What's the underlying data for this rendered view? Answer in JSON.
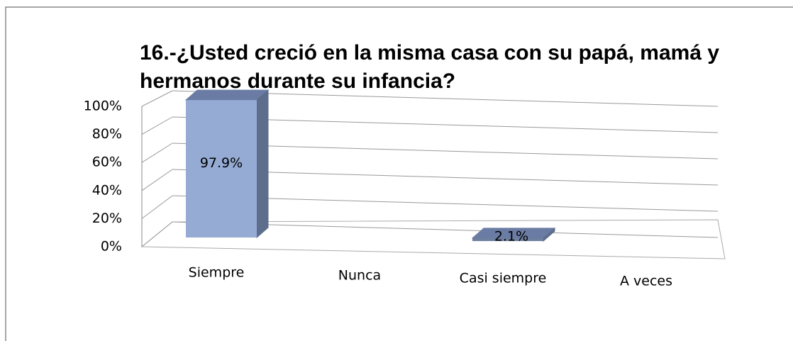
{
  "chart_data": {
    "type": "bar3d",
    "title": "16.-¿Usted creció en la misma casa con su papá, mamá y hermanos durante su infancia?",
    "categories": [
      "Siempre",
      "Nunca",
      "Casi siempre",
      "A veces"
    ],
    "values": [
      97.9,
      0,
      2.1,
      0
    ],
    "value_labels": [
      "97.9%",
      null,
      "2.1%",
      null
    ],
    "colors": [
      "#95abd4",
      "#95abd4",
      "#6f7f9e",
      "#95abd4"
    ],
    "ylim": [
      0,
      100
    ],
    "yticks": [
      {
        "value": 0,
        "label": "0%"
      },
      {
        "value": 20,
        "label": "20%"
      },
      {
        "value": 40,
        "label": "40%"
      },
      {
        "value": 60,
        "label": "60%"
      },
      {
        "value": 80,
        "label": "80%"
      },
      {
        "value": 100,
        "label": "100%"
      }
    ],
    "grid": true
  }
}
